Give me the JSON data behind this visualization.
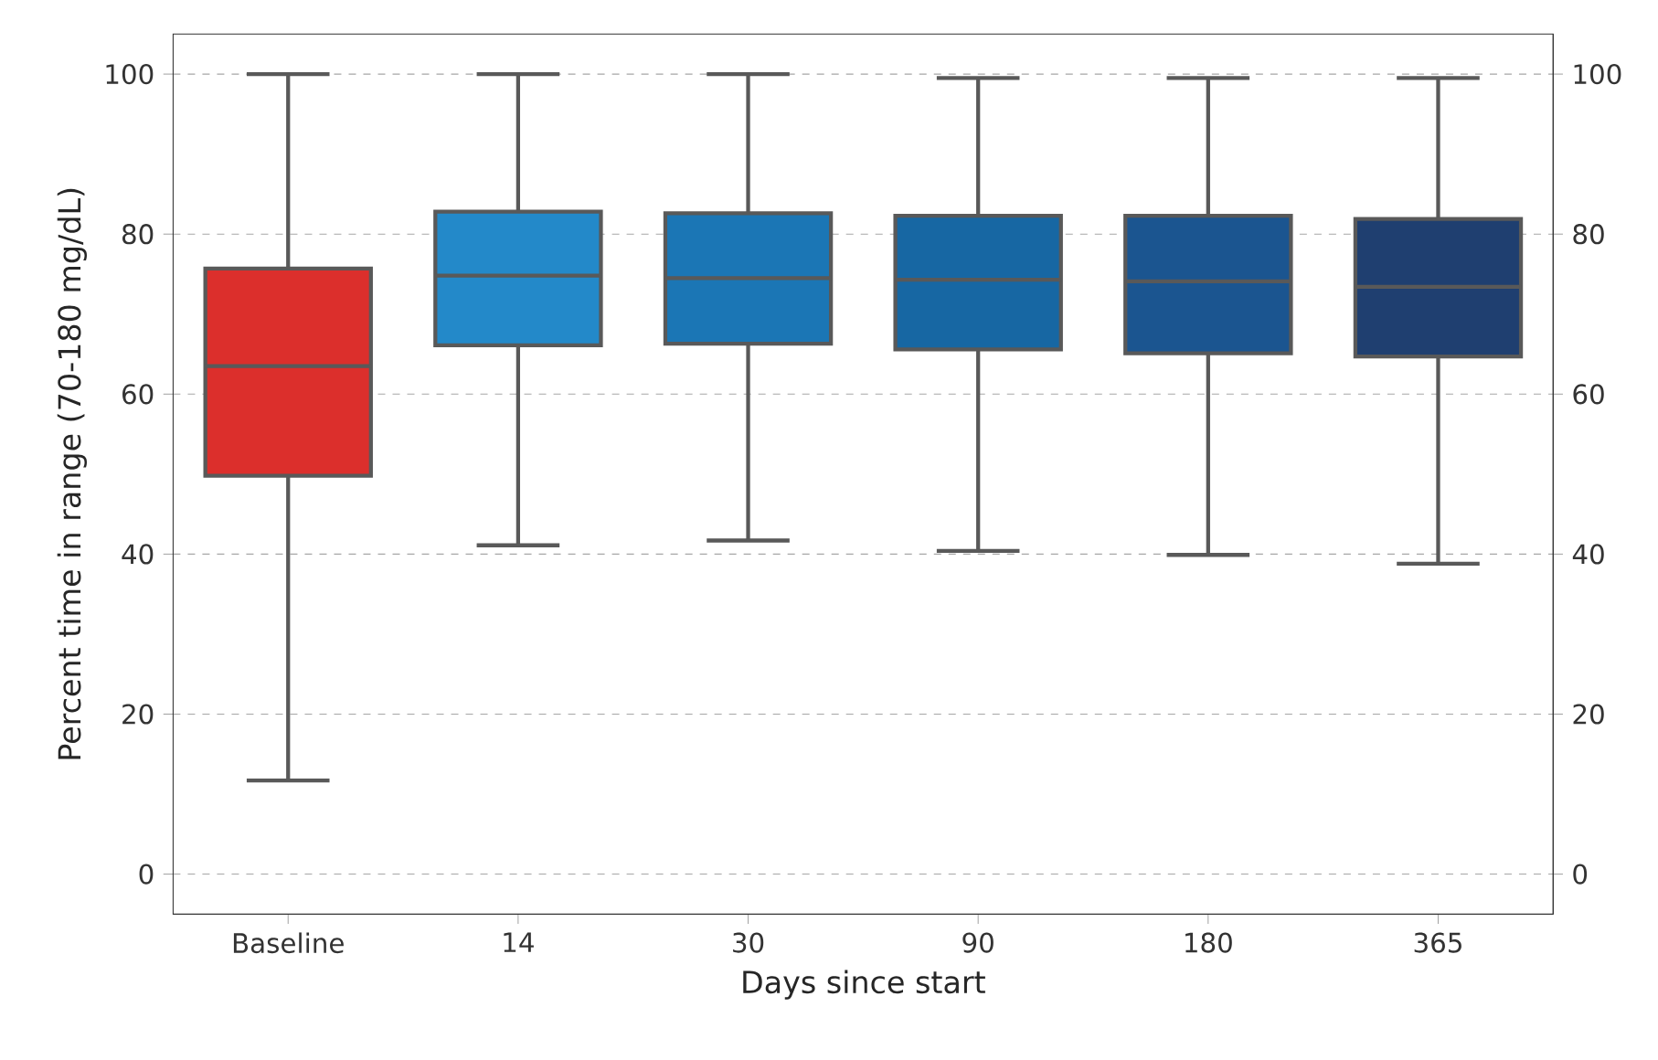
{
  "chart_data": {
    "type": "box",
    "xlabel": "Days since start",
    "ylabel": "Percent time in range (70-180 mg/dL)",
    "categories": [
      "Baseline",
      "14",
      "30",
      "90",
      "180",
      "365"
    ],
    "boxes": [
      {
        "low": 11.7,
        "q1": 49.8,
        "median": 63.5,
        "q3": 75.7,
        "high": 100
      },
      {
        "low": 41.1,
        "q1": 66.1,
        "median": 74.8,
        "q3": 82.8,
        "high": 100
      },
      {
        "low": 41.7,
        "q1": 66.3,
        "median": 74.5,
        "q3": 82.6,
        "high": 100
      },
      {
        "low": 40.4,
        "q1": 65.6,
        "median": 74.3,
        "q3": 82.3,
        "high": 99.5
      },
      {
        "low": 39.9,
        "q1": 65.1,
        "median": 74.1,
        "q3": 82.3,
        "high": 99.5
      },
      {
        "low": 38.8,
        "q1": 64.7,
        "median": 73.4,
        "q3": 81.9,
        "high": 99.5
      }
    ],
    "colors": [
      "#dc2f2c",
      "#2389c9",
      "#1b76b5",
      "#1767a3",
      "#1b5590",
      "#1f3f70"
    ],
    "ylim": [
      -5,
      105
    ],
    "yticks": [
      0,
      20,
      40,
      60,
      80,
      100
    ],
    "y2lim": [
      -5,
      105
    ],
    "y2ticks": [
      0,
      20,
      40,
      60,
      80,
      100
    ],
    "grid": "y"
  }
}
